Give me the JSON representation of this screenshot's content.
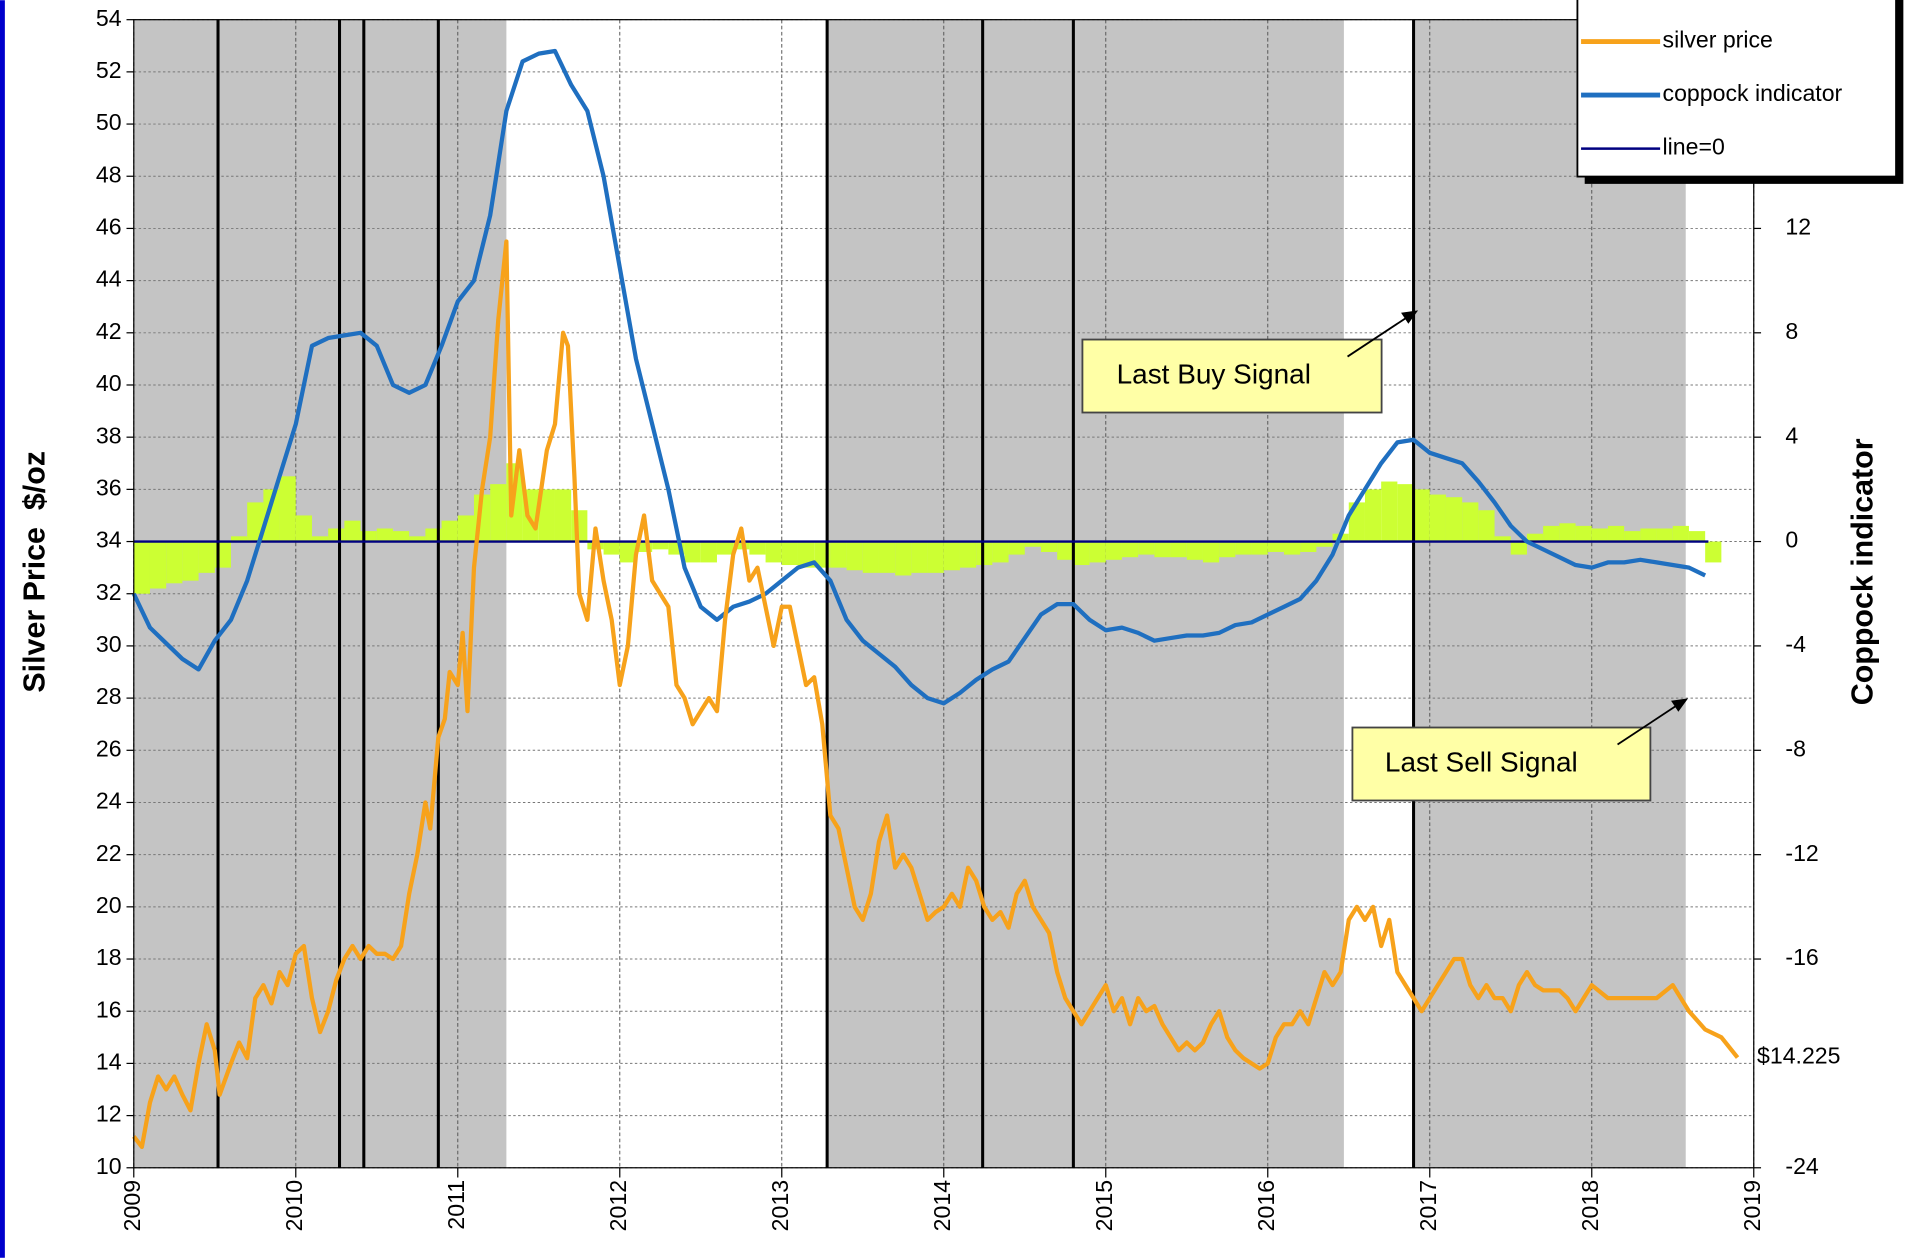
{
  "chart_data": {
    "type": "line",
    "y_label": "Silver Price  $/oz",
    "y2_label": "Coppock indicator",
    "xlim": [
      2009,
      2019
    ],
    "xticks": [
      2009,
      2010,
      2011,
      2012,
      2013,
      2014,
      2015,
      2016,
      2017,
      2018,
      2019
    ],
    "ylim": [
      10,
      54
    ],
    "yticks": [
      10,
      12,
      14,
      16,
      18,
      20,
      22,
      24,
      26,
      28,
      30,
      32,
      34,
      36,
      38,
      40,
      42,
      44,
      46,
      48,
      50,
      52,
      54
    ],
    "y2lim": [
      -24,
      20
    ],
    "y2ticks": [
      -24,
      -16,
      -12,
      -8,
      -4,
      0,
      4,
      8,
      12
    ],
    "grid": true,
    "legend": "top-right",
    "shaded_color": "#c4c4c4",
    "shaded_periods": [
      [
        2009.0,
        2011.3
      ],
      [
        2013.28,
        2016.47
      ],
      [
        2016.9,
        2018.58
      ]
    ],
    "signal_lines": [
      2009.52,
      2010.27,
      2010.42,
      2010.88,
      2013.28,
      2014.24,
      2014.8,
      2016.9
    ],
    "annotations": [
      {
        "text": "Last Buy Signal"
      },
      {
        "text": "Last Sell Signal"
      }
    ],
    "histogram": {
      "color": "#ccff33",
      "axis": "y2",
      "x": [
        2009.0,
        2009.1,
        2009.2,
        2009.3,
        2009.4,
        2009.5,
        2009.6,
        2009.7,
        2009.8,
        2009.9,
        2010.0,
        2010.1,
        2010.2,
        2010.3,
        2010.4,
        2010.5,
        2010.6,
        2010.7,
        2010.8,
        2010.9,
        2011.0,
        2011.1,
        2011.2,
        2011.3,
        2011.4,
        2011.5,
        2011.6,
        2011.7,
        2011.8,
        2011.9,
        2012.0,
        2012.1,
        2012.2,
        2012.3,
        2012.4,
        2012.5,
        2012.6,
        2012.7,
        2012.8,
        2012.9,
        2013.0,
        2013.1,
        2013.2,
        2013.3,
        2013.4,
        2013.5,
        2013.6,
        2013.7,
        2013.8,
        2013.9,
        2014.0,
        2014.1,
        2014.2,
        2014.3,
        2014.4,
        2014.5,
        2014.6,
        2014.7,
        2014.8,
        2014.9,
        2015.0,
        2015.1,
        2015.2,
        2015.3,
        2015.4,
        2015.5,
        2015.6,
        2015.7,
        2015.8,
        2015.9,
        2016.0,
        2016.1,
        2016.2,
        2016.3,
        2016.4,
        2016.5,
        2016.6,
        2016.7,
        2016.8,
        2016.9,
        2017.0,
        2017.1,
        2017.2,
        2017.3,
        2017.4,
        2017.5,
        2017.6,
        2017.7,
        2017.8,
        2017.9,
        2018.0,
        2018.1,
        2018.2,
        2018.3,
        2018.4,
        2018.5,
        2018.6,
        2018.7
      ],
      "values": [
        -2,
        -1.8,
        -1.6,
        -1.5,
        -1.2,
        -1.0,
        0.2,
        1.5,
        2.0,
        2.5,
        1.0,
        0.2,
        0.5,
        0.8,
        0.4,
        0.5,
        0.4,
        0.2,
        0.5,
        0.8,
        1.0,
        1.8,
        2.2,
        3.0,
        2.0,
        2.0,
        2.0,
        1.2,
        -0.3,
        -0.5,
        -0.8,
        -0.4,
        -0.3,
        -0.5,
        -0.8,
        -0.8,
        -0.5,
        -0.3,
        -0.5,
        -0.8,
        -0.9,
        -1.0,
        -1.0,
        -1.0,
        -1.1,
        -1.2,
        -1.2,
        -1.3,
        -1.2,
        -1.2,
        -1.1,
        -1.0,
        -0.9,
        -0.8,
        -0.5,
        -0.2,
        -0.4,
        -0.7,
        -0.9,
        -0.8,
        -0.7,
        -0.6,
        -0.5,
        -0.6,
        -0.6,
        -0.7,
        -0.8,
        -0.6,
        -0.5,
        -0.5,
        -0.4,
        -0.5,
        -0.4,
        -0.2,
        0.3,
        1.5,
        2.0,
        2.3,
        2.2,
        2.0,
        1.8,
        1.7,
        1.5,
        1.2,
        0.2,
        -0.5,
        0.3,
        0.6,
        0.7,
        0.6,
        0.5,
        0.6,
        0.4,
        0.5,
        0.5,
        0.6,
        0.4,
        -0.8
      ]
    },
    "series": [
      {
        "name": "silver price",
        "color": "#f7a21b",
        "x": [
          2009.0,
          2009.05,
          2009.1,
          2009.15,
          2009.2,
          2009.25,
          2009.3,
          2009.35,
          2009.4,
          2009.45,
          2009.5,
          2009.53,
          2009.6,
          2009.65,
          2009.7,
          2009.75,
          2009.8,
          2009.85,
          2009.9,
          2009.95,
          2010.0,
          2010.05,
          2010.1,
          2010.15,
          2010.2,
          2010.25,
          2010.3,
          2010.35,
          2010.4,
          2010.45,
          2010.5,
          2010.55,
          2010.6,
          2010.65,
          2010.7,
          2010.75,
          2010.8,
          2010.83,
          2010.88,
          2010.92,
          2010.95,
          2011.0,
          2011.03,
          2011.06,
          2011.1,
          2011.15,
          2011.2,
          2011.25,
          2011.3,
          2011.33,
          2011.38,
          2011.43,
          2011.48,
          2011.55,
          2011.6,
          2011.65,
          2011.68,
          2011.72,
          2011.75,
          2011.8,
          2011.85,
          2011.9,
          2011.95,
          2012.0,
          2012.05,
          2012.1,
          2012.15,
          2012.2,
          2012.25,
          2012.3,
          2012.35,
          2012.4,
          2012.45,
          2012.5,
          2012.55,
          2012.6,
          2012.65,
          2012.7,
          2012.75,
          2012.8,
          2012.85,
          2012.9,
          2012.95,
          2013.0,
          2013.05,
          2013.1,
          2013.15,
          2013.2,
          2013.25,
          2013.3,
          2013.35,
          2013.4,
          2013.45,
          2013.5,
          2013.55,
          2013.6,
          2013.65,
          2013.7,
          2013.75,
          2013.8,
          2013.85,
          2013.9,
          2013.95,
          2014.0,
          2014.05,
          2014.1,
          2014.15,
          2014.2,
          2014.25,
          2014.3,
          2014.35,
          2014.4,
          2014.45,
          2014.5,
          2014.55,
          2014.6,
          2014.65,
          2014.7,
          2014.75,
          2014.8,
          2014.85,
          2014.9,
          2014.95,
          2015.0,
          2015.05,
          2015.1,
          2015.15,
          2015.2,
          2015.25,
          2015.3,
          2015.35,
          2015.4,
          2015.45,
          2015.5,
          2015.55,
          2015.6,
          2015.65,
          2015.7,
          2015.75,
          2015.8,
          2015.85,
          2015.9,
          2015.95,
          2016.0,
          2016.05,
          2016.1,
          2016.15,
          2016.2,
          2016.25,
          2016.3,
          2016.35,
          2016.4,
          2016.45,
          2016.5,
          2016.55,
          2016.6,
          2016.65,
          2016.7,
          2016.75,
          2016.8,
          2016.85,
          2016.9,
          2016.95,
          2017.0,
          2017.05,
          2017.1,
          2017.15,
          2017.2,
          2017.25,
          2017.3,
          2017.35,
          2017.4,
          2017.45,
          2017.5,
          2017.55,
          2017.6,
          2017.65,
          2017.7,
          2017.75,
          2017.8,
          2017.85,
          2017.9,
          2017.95,
          2018.0,
          2018.1,
          2018.2,
          2018.3,
          2018.4,
          2018.5,
          2018.6,
          2018.7,
          2018.8,
          2018.9
        ],
        "values": [
          11.2,
          10.8,
          12.5,
          13.5,
          13.0,
          13.5,
          12.8,
          12.2,
          14.0,
          15.5,
          14.5,
          12.8,
          14.0,
          14.8,
          14.2,
          16.5,
          17.0,
          16.3,
          17.5,
          17.0,
          18.2,
          18.5,
          16.5,
          15.2,
          16.0,
          17.2,
          18.0,
          18.5,
          18.0,
          18.5,
          18.2,
          18.2,
          18.0,
          18.5,
          20.5,
          22.0,
          24.0,
          23.0,
          26.5,
          27.2,
          29.0,
          28.5,
          30.5,
          27.5,
          33.0,
          36.0,
          38.0,
          42.5,
          45.5,
          35.0,
          37.5,
          35.0,
          34.5,
          37.5,
          38.5,
          42.0,
          41.5,
          36.5,
          32.0,
          31.0,
          34.5,
          32.5,
          31.0,
          28.5,
          30.0,
          33.5,
          35.0,
          32.5,
          32.0,
          31.5,
          28.5,
          28.0,
          27.0,
          27.5,
          28.0,
          27.5,
          31.0,
          33.5,
          34.5,
          32.5,
          33.0,
          31.5,
          30.0,
          31.5,
          31.5,
          30.0,
          28.5,
          28.8,
          27.0,
          23.5,
          23.0,
          21.5,
          20.0,
          19.5,
          20.5,
          22.5,
          23.5,
          21.5,
          22.0,
          21.5,
          20.5,
          19.5,
          19.8,
          20.0,
          20.5,
          20.0,
          21.5,
          21.0,
          20.0,
          19.5,
          19.8,
          19.2,
          20.5,
          21.0,
          20.0,
          19.5,
          19.0,
          17.5,
          16.5,
          16.0,
          15.5,
          16.0,
          16.5,
          17.0,
          16.0,
          16.5,
          15.5,
          16.5,
          16.0,
          16.2,
          15.5,
          15.0,
          14.5,
          14.8,
          14.5,
          14.8,
          15.5,
          16.0,
          15.0,
          14.5,
          14.2,
          14.0,
          13.8,
          14.0,
          15.0,
          15.5,
          15.5,
          16.0,
          15.5,
          16.5,
          17.5,
          17.0,
          17.5,
          19.5,
          20.0,
          19.5,
          20.0,
          18.5,
          19.5,
          17.5,
          17.0,
          16.5,
          16.0,
          16.5,
          17.0,
          17.5,
          18.0,
          18.0,
          17.0,
          16.5,
          17.0,
          16.5,
          16.5,
          16.0,
          17.0,
          17.5,
          17.0,
          16.8,
          16.8,
          16.8,
          16.5,
          16.0,
          16.5,
          17.0,
          16.5,
          16.5,
          16.5,
          16.5,
          17.0,
          16.0,
          15.3,
          15.0,
          14.225
        ],
        "value_labels": [
          null,
          null,
          null,
          null,
          null,
          null,
          null,
          null,
          null,
          null,
          null,
          null,
          null,
          null,
          null,
          null,
          null,
          null,
          null,
          null,
          null,
          null,
          null,
          null,
          null,
          null,
          null,
          null,
          null,
          null,
          null,
          null,
          null,
          null,
          null,
          null,
          null,
          null,
          null,
          null,
          null,
          null,
          null,
          null,
          null,
          null,
          null,
          null,
          null,
          null,
          null,
          null,
          null,
          null,
          null,
          null,
          null,
          null,
          null,
          null,
          null,
          null,
          null,
          null,
          null,
          null,
          null,
          null,
          null,
          null,
          null,
          null,
          null,
          null,
          null,
          null,
          null,
          null,
          null,
          null,
          null,
          null,
          null,
          null,
          null,
          null,
          null,
          null,
          null,
          null,
          null,
          null,
          null,
          null,
          null,
          null,
          null,
          null,
          null,
          null,
          null,
          null,
          null,
          null,
          null,
          null,
          null,
          null,
          null,
          null,
          null,
          null,
          null,
          null,
          null,
          null,
          null,
          null,
          null,
          null,
          null,
          null,
          null,
          null,
          null,
          null,
          null,
          null,
          null,
          null,
          null,
          null,
          null,
          null,
          null,
          null,
          null,
          null,
          null,
          null,
          null,
          null,
          null,
          null,
          null,
          null,
          null,
          null,
          null,
          null,
          null,
          null,
          null,
          null,
          null,
          null,
          null,
          null,
          null,
          null,
          null,
          null,
          null,
          null,
          null,
          null,
          null,
          null,
          null,
          null,
          null,
          null,
          null,
          null,
          null,
          null,
          null,
          null,
          null,
          null,
          null,
          null,
          null,
          null,
          null,
          null,
          null,
          null,
          null,
          null,
          null,
          null,
          "$14.225"
        ]
      },
      {
        "name": "coppock indicator",
        "color": "#1f6fc0",
        "axis": "y2",
        "x": [
          2009.0,
          2009.1,
          2009.2,
          2009.3,
          2009.4,
          2009.5,
          2009.6,
          2009.7,
          2009.8,
          2009.9,
          2010.0,
          2010.1,
          2010.2,
          2010.3,
          2010.4,
          2010.5,
          2010.6,
          2010.7,
          2010.8,
          2010.9,
          2011.0,
          2011.1,
          2011.2,
          2011.3,
          2011.4,
          2011.5,
          2011.6,
          2011.7,
          2011.8,
          2011.9,
          2012.0,
          2012.1,
          2012.2,
          2012.3,
          2012.4,
          2012.5,
          2012.6,
          2012.7,
          2012.8,
          2012.9,
          2013.0,
          2013.1,
          2013.2,
          2013.3,
          2013.4,
          2013.5,
          2013.6,
          2013.7,
          2013.8,
          2013.9,
          2014.0,
          2014.1,
          2014.2,
          2014.3,
          2014.4,
          2014.5,
          2014.6,
          2014.7,
          2014.8,
          2014.9,
          2015.0,
          2015.1,
          2015.2,
          2015.3,
          2015.4,
          2015.5,
          2015.6,
          2015.7,
          2015.8,
          2015.9,
          2016.0,
          2016.1,
          2016.2,
          2016.3,
          2016.4,
          2016.5,
          2016.6,
          2016.7,
          2016.8,
          2016.9,
          2017.0,
          2017.1,
          2017.2,
          2017.3,
          2017.4,
          2017.5,
          2017.6,
          2017.7,
          2017.8,
          2017.9,
          2018.0,
          2018.1,
          2018.2,
          2018.3,
          2018.4,
          2018.5,
          2018.6,
          2018.7
        ],
        "values": [
          -2.0,
          -3.3,
          -3.9,
          -4.5,
          -4.9,
          -3.8,
          -3.0,
          -1.5,
          0.5,
          2.5,
          4.5,
          7.5,
          7.8,
          7.9,
          8.0,
          7.5,
          6.0,
          5.7,
          6.0,
          7.5,
          9.2,
          10.0,
          12.5,
          16.5,
          18.4,
          18.7,
          18.8,
          17.5,
          16.5,
          14.0,
          10.5,
          7.0,
          4.5,
          2.0,
          -1.0,
          -2.5,
          -3.0,
          -2.5,
          -2.3,
          -2.0,
          -1.5,
          -1.0,
          -0.8,
          -1.5,
          -3.0,
          -3.8,
          -4.3,
          -4.8,
          -5.5,
          -6.0,
          -6.2,
          -5.8,
          -5.3,
          -4.9,
          -4.6,
          -3.7,
          -2.8,
          -2.4,
          -2.4,
          -3.0,
          -3.4,
          -3.3,
          -3.5,
          -3.8,
          -3.7,
          -3.6,
          -3.6,
          -3.5,
          -3.2,
          -3.1,
          -2.8,
          -2.5,
          -2.2,
          -1.5,
          -0.5,
          1.0,
          2.0,
          3.0,
          3.8,
          3.9,
          3.4,
          3.2,
          3.0,
          2.3,
          1.5,
          0.6,
          0.0,
          -0.3,
          -0.6,
          -0.9,
          -1.0,
          -0.8,
          -0.8,
          -0.7,
          -0.8,
          -0.9,
          -1.0,
          -1.3
        ]
      },
      {
        "name": "line=0",
        "color": "#000080",
        "axis": "y2",
        "x": [
          2009.0,
          2018.72
        ],
        "values": [
          0,
          0
        ]
      }
    ]
  }
}
